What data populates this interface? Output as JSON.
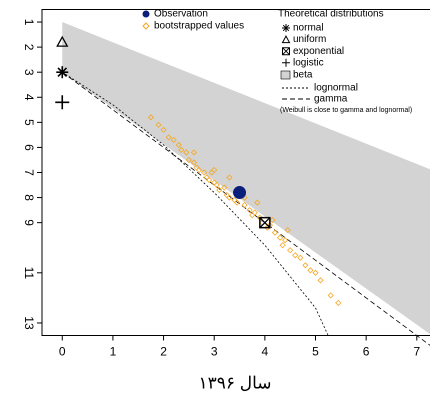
{
  "chart_data": {
    "type": "cullen-frey",
    "xlabel": "سال ۱۳۹۶",
    "xlim": [
      -0.4,
      7.3
    ],
    "ylim": [
      0.5,
      13.5
    ],
    "y_reversed": true,
    "xticks": [
      0,
      1,
      2,
      3,
      4,
      5,
      6,
      7
    ],
    "yticks": [
      1,
      2,
      3,
      4,
      5,
      6,
      7,
      8,
      9,
      11,
      13
    ],
    "observation": {
      "name": "Observation",
      "x": 3.5,
      "y": 7.8,
      "color": "#0a1f7a"
    },
    "bootstrap": {
      "name": "bootstrapped values",
      "color": "#f5a623",
      "x": [
        1.75,
        1.9,
        2.0,
        2.1,
        2.2,
        2.3,
        2.35,
        2.45,
        2.5,
        2.6,
        2.65,
        2.7,
        2.8,
        2.85,
        2.9,
        3.0,
        3.05,
        3.1,
        3.2,
        3.25,
        3.3,
        3.4,
        3.45,
        3.6,
        3.7,
        3.75,
        3.8,
        3.9,
        3.95,
        4.05,
        4.1,
        4.2,
        4.3,
        4.35,
        4.4,
        4.5,
        4.6,
        4.7,
        4.8,
        4.9,
        5.0,
        5.1,
        5.3,
        5.45,
        3.0,
        3.3,
        3.6,
        2.6,
        4.15,
        4.45,
        3.85,
        2.95
      ],
      "y": [
        4.8,
        5.1,
        5.3,
        5.6,
        5.7,
        5.9,
        6.1,
        6.2,
        6.5,
        6.6,
        6.8,
        6.9,
        7.0,
        7.2,
        7.3,
        7.4,
        7.5,
        7.7,
        7.6,
        7.9,
        8.0,
        8.1,
        8.2,
        8.3,
        8.5,
        8.7,
        8.6,
        8.8,
        9.0,
        9.2,
        9.1,
        9.4,
        9.6,
        9.9,
        9.7,
        10.1,
        10.3,
        10.4,
        10.7,
        10.9,
        11.0,
        11.3,
        11.9,
        12.2,
        6.9,
        7.2,
        8.0,
        6.2,
        8.9,
        9.3,
        8.2,
        7.0
      ]
    },
    "legend_title": "Theoretical distributions",
    "theoretical": [
      {
        "name": "normal",
        "x": 0,
        "y": 3
      },
      {
        "name": "uniform",
        "x": 0,
        "y": 1.8
      },
      {
        "name": "exponential",
        "x": 4,
        "y": 9
      },
      {
        "name": "logistic",
        "x": 0,
        "y": 4.2
      }
    ],
    "beta": {
      "name": "beta",
      "color": "#d3d3d3",
      "x": [
        0,
        7.3,
        7.3,
        0
      ],
      "y": [
        1,
        6.9,
        13.5,
        3
      ]
    },
    "lognormal": {
      "name": "lognormal",
      "x": [
        0,
        1,
        2,
        3,
        4,
        5,
        5.25
      ],
      "y": [
        3,
        4.3,
        5.9,
        7.8,
        9.9,
        12.4,
        13.5
      ]
    },
    "gamma": {
      "name": "gamma",
      "x": [
        0,
        7.3
      ],
      "y": [
        3,
        13.95
      ]
    },
    "note": "(Weibull is close to gamma and lognormal)"
  }
}
